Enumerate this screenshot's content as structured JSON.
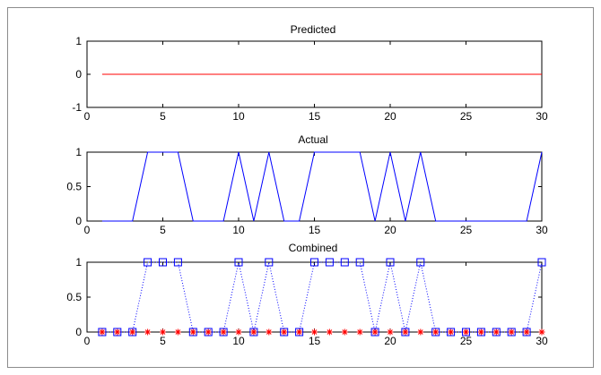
{
  "figure": {
    "border_color": "#8c8c8c",
    "background": "#ffffff",
    "axes_color": "#000000"
  },
  "chart_data": [
    {
      "type": "line",
      "title": "Predicted",
      "xlabel": "",
      "ylabel": "",
      "xlim": [
        0,
        30
      ],
      "ylim": [
        -1,
        1
      ],
      "xticks": [
        "0",
        "5",
        "10",
        "15",
        "20",
        "25",
        "30"
      ],
      "yticks": [
        "-1",
        "0",
        "1"
      ],
      "grid": false,
      "series": [
        {
          "color": "#ff0000",
          "style": "solid",
          "marker": "none",
          "x": [
            1,
            30
          ],
          "y": [
            0,
            0
          ]
        }
      ]
    },
    {
      "type": "line",
      "title": "Actual",
      "xlabel": "",
      "ylabel": "",
      "xlim": [
        0,
        30
      ],
      "ylim": [
        0,
        1
      ],
      "xticks": [
        "0",
        "5",
        "10",
        "15",
        "20",
        "25",
        "30"
      ],
      "yticks": [
        "0",
        "0.5",
        "1"
      ],
      "grid": false,
      "series": [
        {
          "color": "#0000ff",
          "style": "solid",
          "marker": "none",
          "x": [
            1,
            2,
            3,
            4,
            5,
            6,
            7,
            8,
            9,
            10,
            11,
            12,
            13,
            14,
            15,
            16,
            17,
            18,
            19,
            20,
            21,
            22,
            23,
            24,
            25,
            26,
            27,
            28,
            29,
            30
          ],
          "y": [
            0,
            0,
            0,
            1,
            1,
            1,
            0,
            0,
            0,
            1,
            0,
            1,
            0,
            0,
            1,
            1,
            1,
            1,
            0,
            1,
            0,
            1,
            0,
            0,
            0,
            0,
            0,
            0,
            0,
            1
          ]
        }
      ]
    },
    {
      "type": "line",
      "title": "Combined",
      "xlabel": "",
      "ylabel": "",
      "xlim": [
        0,
        30
      ],
      "ylim": [
        0,
        1
      ],
      "xticks": [
        "0",
        "5",
        "10",
        "15",
        "20",
        "25",
        "30"
      ],
      "yticks": [
        "0",
        "0.5",
        "1"
      ],
      "grid": false,
      "series": [
        {
          "color": "#0000ff",
          "style": "dotted",
          "marker": "square",
          "x": [
            1,
            2,
            3,
            4,
            5,
            6,
            7,
            8,
            9,
            10,
            11,
            12,
            13,
            14,
            15,
            16,
            17,
            18,
            19,
            20,
            21,
            22,
            23,
            24,
            25,
            26,
            27,
            28,
            29,
            30
          ],
          "y": [
            0,
            0,
            0,
            1,
            1,
            1,
            0,
            0,
            0,
            1,
            0,
            1,
            0,
            0,
            1,
            1,
            1,
            1,
            0,
            1,
            0,
            1,
            0,
            0,
            0,
            0,
            0,
            0,
            0,
            1
          ]
        },
        {
          "color": "#ff0000",
          "style": "none",
          "marker": "asterisk",
          "x": [
            1,
            2,
            3,
            4,
            5,
            6,
            7,
            8,
            9,
            10,
            11,
            12,
            13,
            14,
            15,
            16,
            17,
            18,
            19,
            20,
            21,
            22,
            23,
            24,
            25,
            26,
            27,
            28,
            29,
            30
          ],
          "y": [
            0,
            0,
            0,
            0,
            0,
            0,
            0,
            0,
            0,
            0,
            0,
            0,
            0,
            0,
            0,
            0,
            0,
            0,
            0,
            0,
            0,
            0,
            0,
            0,
            0,
            0,
            0,
            0,
            0,
            0
          ]
        }
      ]
    }
  ]
}
